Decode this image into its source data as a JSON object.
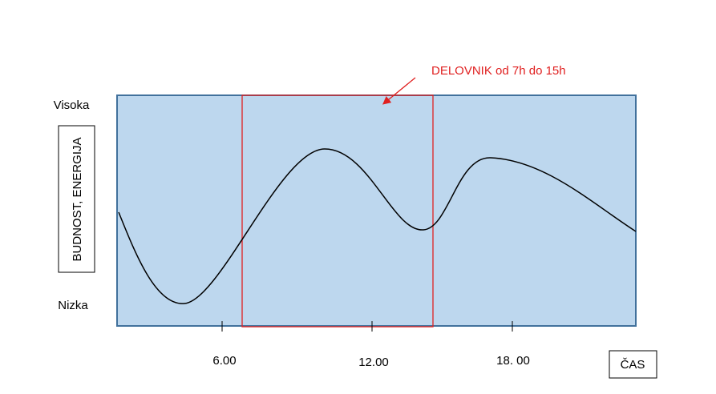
{
  "header": {
    "title": "DELOVNIK od 7h do 15h"
  },
  "y_axis": {
    "label": "BUDNOST, ENERGIJA",
    "high": "Visoka",
    "low": "Nizka"
  },
  "x_axis": {
    "label": "ČAS",
    "ticks": [
      "6.00",
      "12.00",
      "18. 00"
    ]
  }
}
